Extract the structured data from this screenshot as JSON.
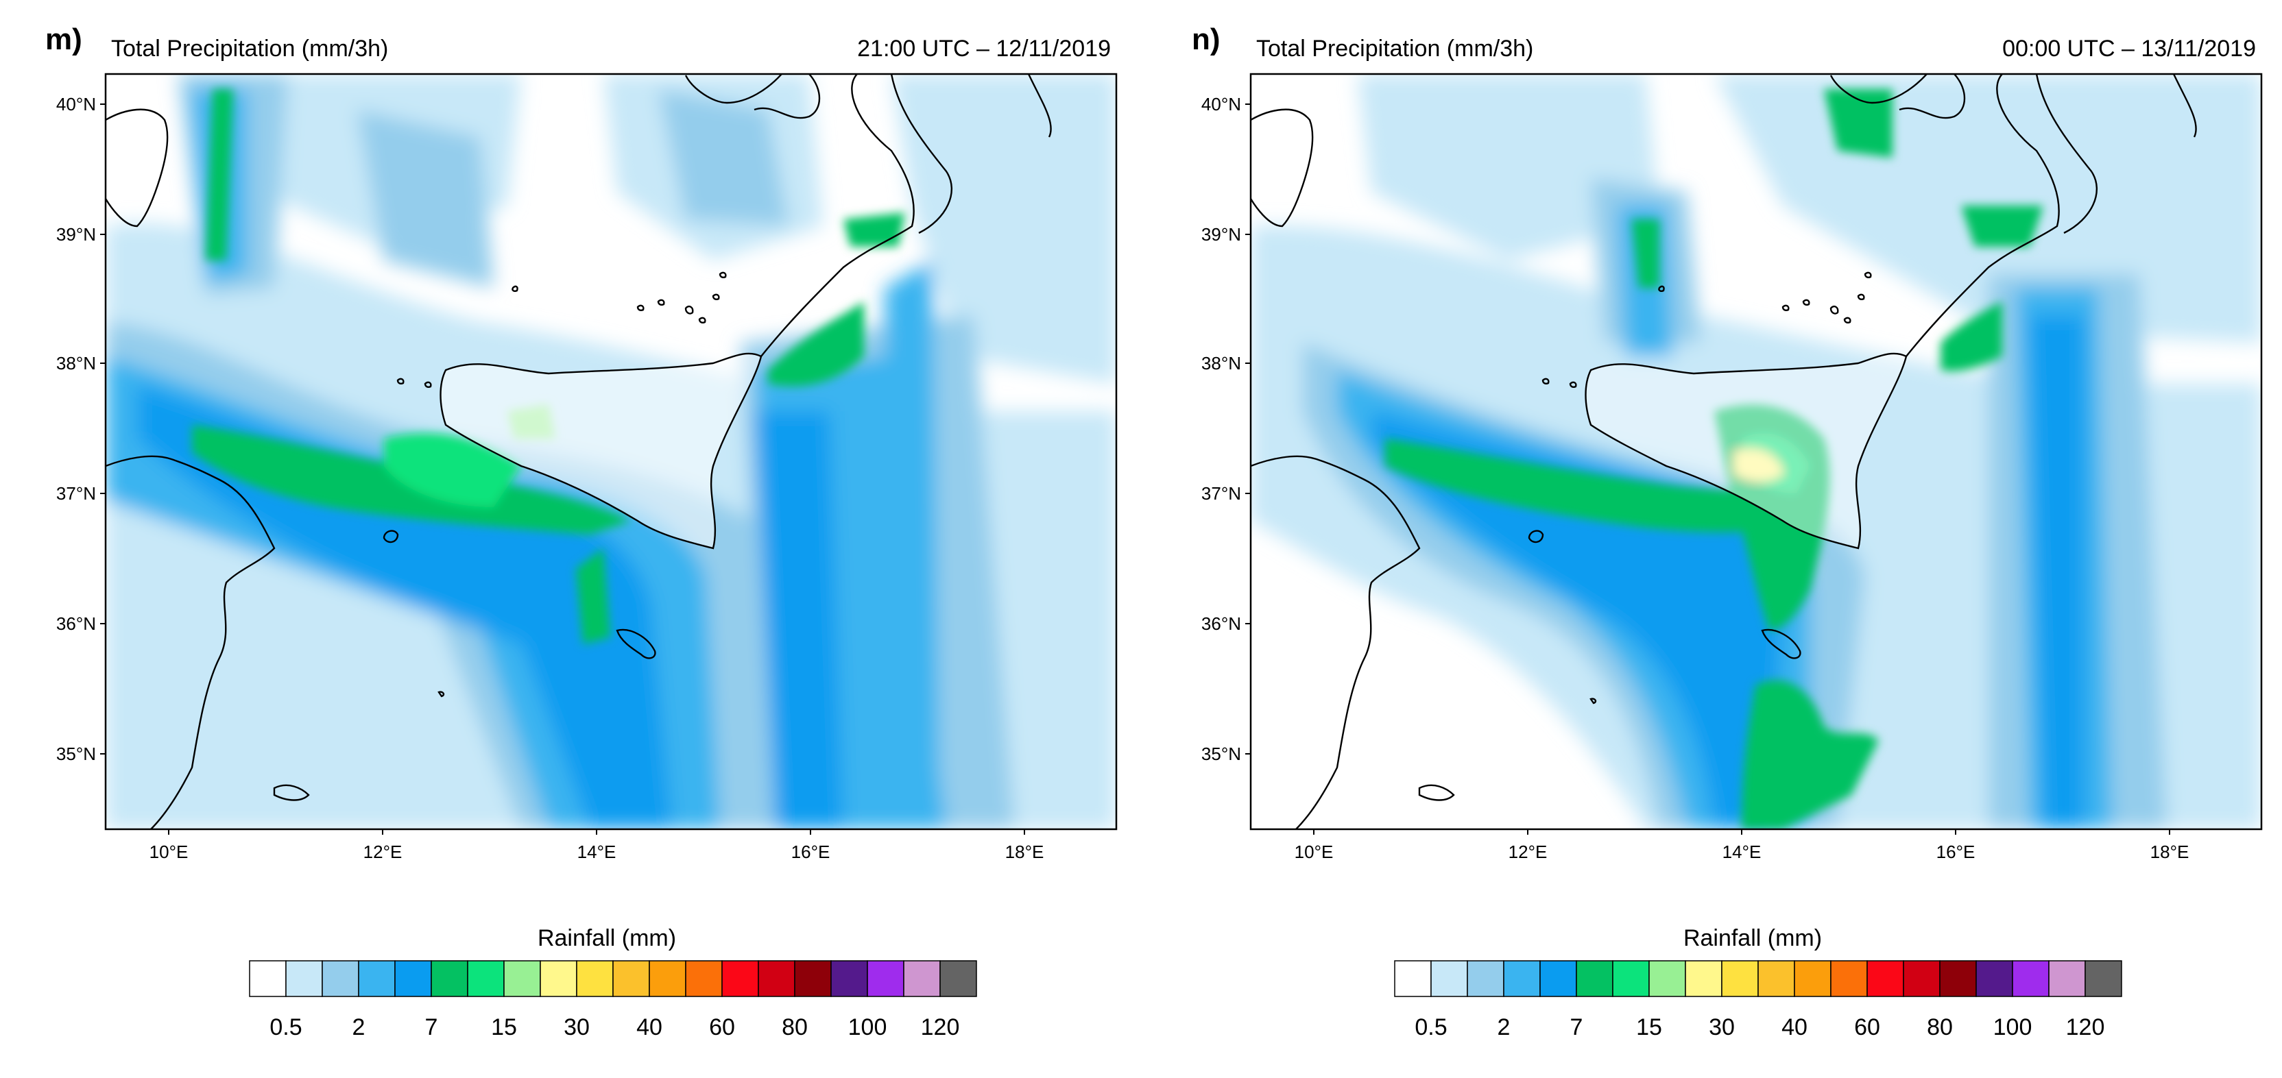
{
  "panels": [
    {
      "letter": "m)",
      "title": "Total Precipitation (mm/3h)",
      "time": "21:00 UTC – 12/11/2019",
      "lat_ticks": [
        "40°N",
        "39°N",
        "38°N",
        "37°N",
        "36°N",
        "35°N"
      ],
      "lon_ticks": [
        "10°E",
        "12°E",
        "14°E",
        "16°E",
        "18°E"
      ],
      "colorbar": {
        "title": "Rainfall  (mm)",
        "labels": [
          "0.5",
          "2",
          "7",
          "15",
          "30",
          "40",
          "60",
          "80",
          "100",
          "120"
        ]
      }
    },
    {
      "letter": "n)",
      "title": "Total Precipitation (mm/3h)",
      "time": "00:00 UTC – 13/11/2019",
      "lat_ticks": [
        "40°N",
        "39°N",
        "38°N",
        "37°N",
        "36°N",
        "35°N"
      ],
      "lon_ticks": [
        "10°E",
        "12°E",
        "14°E",
        "16°E",
        "18°E"
      ],
      "colorbar": {
        "title": "Rainfall  (mm)",
        "labels": [
          "0.5",
          "2",
          "7",
          "15",
          "30",
          "40",
          "60",
          "80",
          "100",
          "120"
        ]
      }
    }
  ],
  "colorbar_colors": [
    "#ffffff",
    "#c8e8f8",
    "#94cdec",
    "#3ab4f0",
    "#0a9cf0",
    "#04c162",
    "#0ce37c",
    "#98f094",
    "#fff88c",
    "#fee140",
    "#fbc12c",
    "#fb9e0c",
    "#fb7009",
    "#fb0717",
    "#d10013",
    "#8e0009",
    "#541a8c",
    "#9f2ced",
    "#cf96d0",
    "#646464"
  ]
}
